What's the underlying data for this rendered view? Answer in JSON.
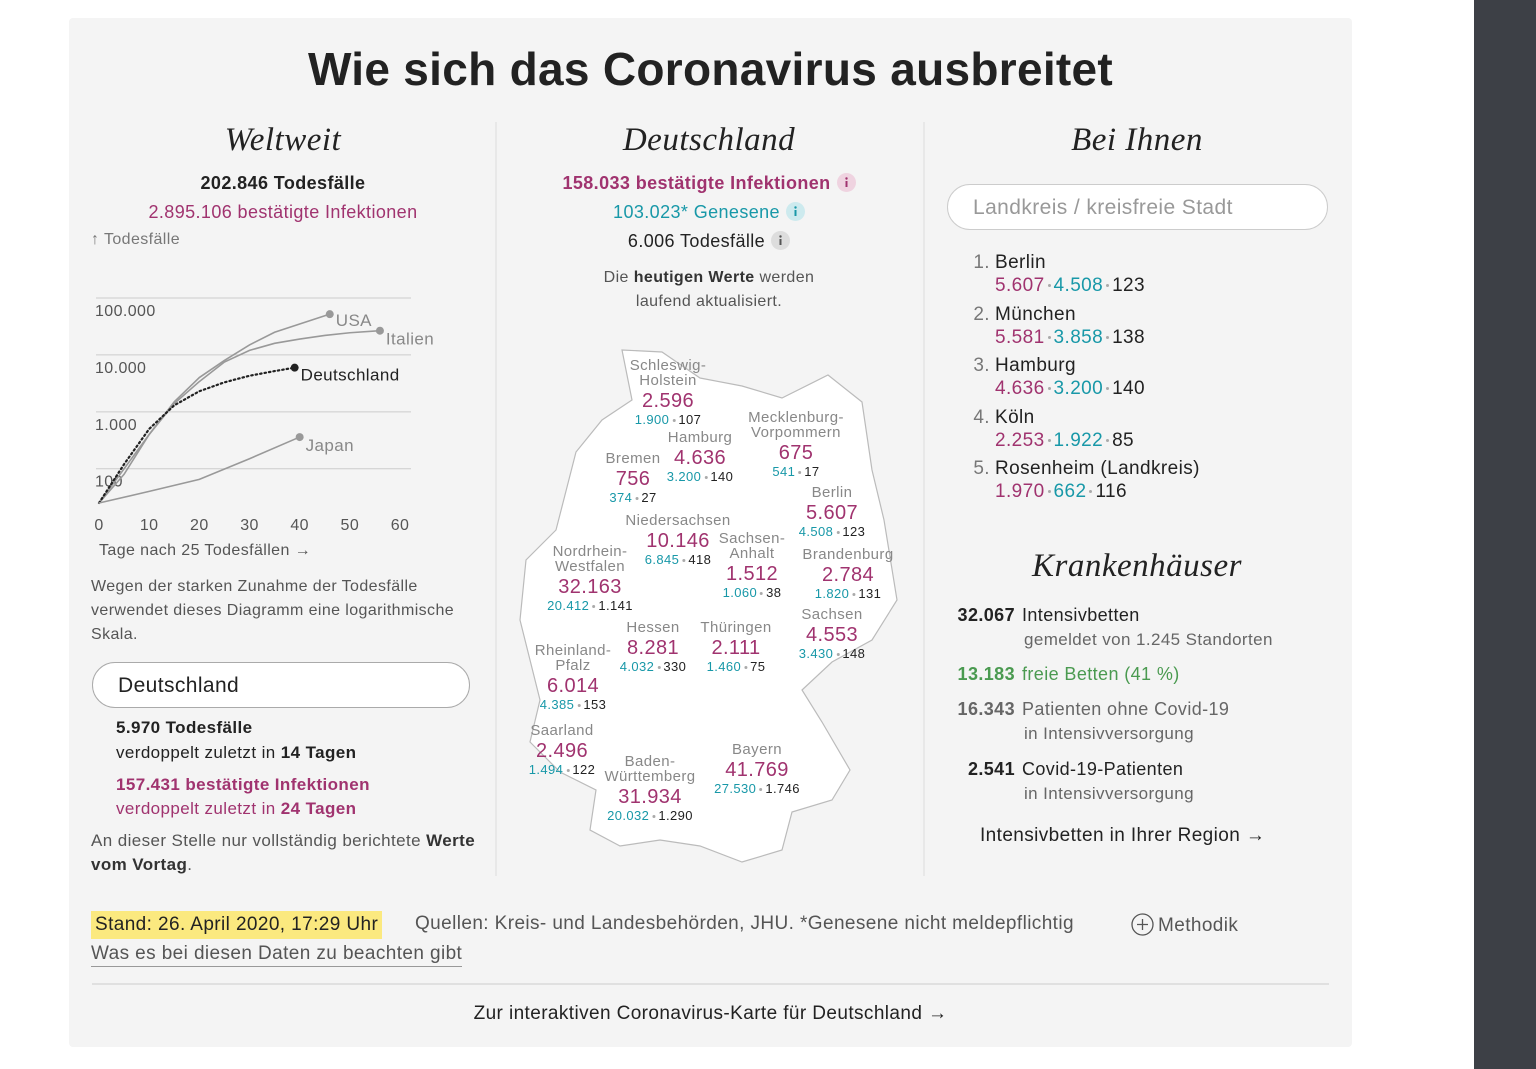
{
  "header": {
    "title": "Wie sich das Coronavirus ausbreitet"
  },
  "world": {
    "heading": "Weltweit",
    "deaths": "202.846 Todesfälle",
    "infections": "2.895.106 bestätigte Infektionen",
    "note": "Wegen der starken Zunahme der Todesfälle verwendet dieses Diagramm eine logarithmische Skala.",
    "select": "Deutschland",
    "country": {
      "deaths": "5.970 Todesfälle",
      "deaths_doubling": {
        "text": "verdoppelt zuletzt in",
        "days": "14 Tagen"
      },
      "infections": "157.431 bestätigte Infektionen",
      "infections_doubling": {
        "text": "verdoppelt zuletzt in",
        "days": "24 Tagen"
      }
    },
    "footnote": {
      "text": "An dieser Stelle nur vollständig berichtete",
      "bold": "Werte vom Vortag",
      "end": "."
    }
  },
  "chart_data": {
    "type": "line",
    "y_label": "↑ Todesfälle",
    "x_label": "Tage nach 25 Todesfällen →",
    "log_y": true,
    "grid": true,
    "xlim": [
      0,
      60
    ],
    "xticks": [
      0,
      10,
      20,
      30,
      40,
      50,
      60
    ],
    "ylim": [
      25,
      100000
    ],
    "yticks": [
      {
        "value": 100,
        "label": "100"
      },
      {
        "value": 1000,
        "label": "1.000"
      },
      {
        "value": 10000,
        "label": "10.000"
      },
      {
        "value": 100000,
        "label": "100.000"
      }
    ],
    "series": [
      {
        "name": "USA",
        "color": "#999999",
        "x": [
          0,
          5,
          10,
          15,
          20,
          25,
          30,
          35,
          40,
          46
        ],
        "values": [
          25,
          80,
          400,
          1500,
          4000,
          8000,
          15000,
          25000,
          35000,
          52000
        ]
      },
      {
        "name": "Italien",
        "color": "#999999",
        "x": [
          0,
          5,
          10,
          15,
          20,
          25,
          30,
          35,
          40,
          45,
          50,
          56
        ],
        "values": [
          25,
          100,
          400,
          1400,
          3400,
          7500,
          12000,
          16000,
          19000,
          22000,
          24500,
          26600
        ]
      },
      {
        "name": "Deutschland",
        "color": "#222222",
        "x": [
          0,
          5,
          10,
          15,
          20,
          25,
          30,
          35,
          39
        ],
        "values": [
          25,
          120,
          500,
          1300,
          2300,
          3300,
          4300,
          5200,
          5970
        ]
      },
      {
        "name": "Japan",
        "color": "#999999",
        "x": [
          0,
          10,
          20,
          30,
          40
        ],
        "values": [
          25,
          40,
          65,
          150,
          360
        ]
      }
    ]
  },
  "germany": {
    "heading": "Deutschland",
    "infections": "158.033 bestätigte Infektionen",
    "recovered": "103.023* Genesene",
    "deaths": "6.006 Todesfälle",
    "update": {
      "pre": "Die",
      "bold": "heutigen Werte",
      "post": "werden laufend aktualisiert."
    },
    "states": [
      {
        "name": [
          "Schleswig-",
          "Holstein"
        ],
        "infections": "2.596",
        "recovered": "1.900",
        "deaths": "107"
      },
      {
        "name": [
          "Hamburg"
        ],
        "infections": "4.636",
        "recovered": "3.200",
        "deaths": "140"
      },
      {
        "name": [
          "Mecklenburg-",
          "Vorpommern"
        ],
        "infections": "675",
        "recovered": "541",
        "deaths": "17"
      },
      {
        "name": [
          "Bremen"
        ],
        "infections": "756",
        "recovered": "374",
        "deaths": "27"
      },
      {
        "name": [
          "Berlin"
        ],
        "infections": "5.607",
        "recovered": "4.508",
        "deaths": "123"
      },
      {
        "name": [
          "Niedersachsen"
        ],
        "infections": "10.146",
        "recovered": "6.845",
        "deaths": "418"
      },
      {
        "name": [
          "Nordrhein-",
          "Westfalen"
        ],
        "infections": "32.163",
        "recovered": "20.412",
        "deaths": "1.141"
      },
      {
        "name": [
          "Sachsen-",
          "Anhalt"
        ],
        "infections": "1.512",
        "recovered": "1.060",
        "deaths": "38"
      },
      {
        "name": [
          "Brandenburg"
        ],
        "infections": "2.784",
        "recovered": "1.820",
        "deaths": "131"
      },
      {
        "name": [
          "Sachsen"
        ],
        "infections": "4.553",
        "recovered": "3.430",
        "deaths": "148"
      },
      {
        "name": [
          "Hessen"
        ],
        "infections": "8.281",
        "recovered": "4.032",
        "deaths": "330"
      },
      {
        "name": [
          "Thüringen"
        ],
        "infections": "2.111",
        "recovered": "1.460",
        "deaths": "75"
      },
      {
        "name": [
          "Rheinland-",
          "Pfalz"
        ],
        "infections": "6.014",
        "recovered": "4.385",
        "deaths": "153"
      },
      {
        "name": [
          "Saarland"
        ],
        "infections": "2.496",
        "recovered": "1.494",
        "deaths": "122"
      },
      {
        "name": [
          "Baden-",
          "Württemberg"
        ],
        "infections": "31.934",
        "recovered": "20.032",
        "deaths": "1.290"
      },
      {
        "name": [
          "Bayern"
        ],
        "infections": "41.769",
        "recovered": "27.530",
        "deaths": "1.746"
      }
    ]
  },
  "local": {
    "heading": "Bei Ihnen",
    "search_placeholder": "Landkreis / kreisfreie Stadt",
    "ranking": [
      {
        "rank": "1.",
        "name": "Berlin",
        "infections": "5.607",
        "recovered": "4.508",
        "deaths": "123"
      },
      {
        "rank": "2.",
        "name": "München",
        "infections": "5.581",
        "recovered": "3.858",
        "deaths": "138"
      },
      {
        "rank": "3.",
        "name": "Hamburg",
        "infections": "4.636",
        "recovered": "3.200",
        "deaths": "140"
      },
      {
        "rank": "4.",
        "name": "Köln",
        "infections": "2.253",
        "recovered": "1.922",
        "deaths": "85"
      },
      {
        "rank": "5.",
        "name": "Rosenheim (Landkreis)",
        "infections": "1.970",
        "recovered": "662",
        "deaths": "116"
      }
    ]
  },
  "hospitals": {
    "heading": "Krankenhäuser",
    "rows": [
      {
        "value": "32.067",
        "label": "Intensivbetten",
        "sub": "gemeldet von 1.245 Standorten"
      },
      {
        "value": "13.183",
        "label": "freie Betten (41 %)"
      },
      {
        "value": "16.343",
        "label": "Patienten ohne Covid-19",
        "sub": "in Intensivversorgung"
      },
      {
        "value": "2.541",
        "label": "Covid-19-Patienten",
        "sub": "in Intensivversorgung"
      }
    ],
    "link": "Intensivbetten in Ihrer Region →"
  },
  "footer": {
    "stand": "Stand: 26. April 2020, 17:29 Uhr",
    "sources": "Quellen: Kreis- und Landesbehörden, JHU. *Genesene nicht meldepflichtig",
    "method": "Methodik",
    "notes_link": "Was es bei diesen Daten zu beachten gibt",
    "map_link": "Zur interaktiven Coronavirus-Karte für Deutschland →"
  }
}
